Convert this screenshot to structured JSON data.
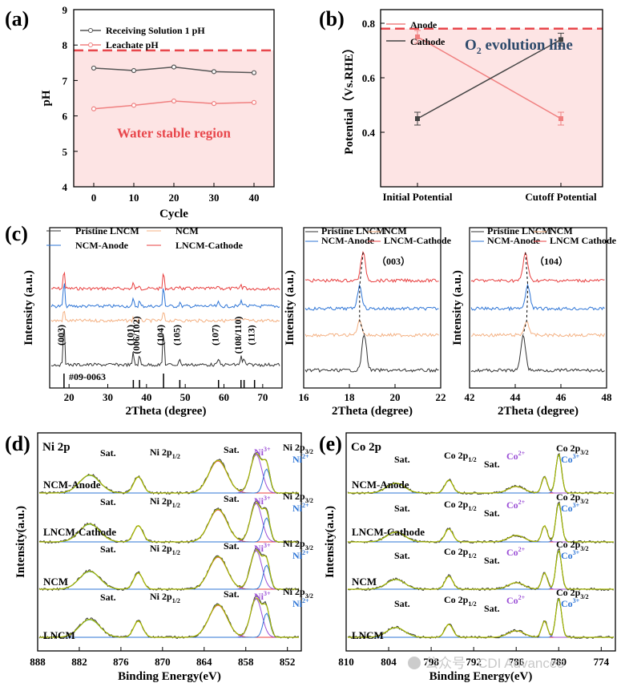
{
  "chart_data": [
    {
      "id": "a",
      "panel_label": "(a)",
      "type": "line",
      "xlabel": "Cycle",
      "ylabel": "pH",
      "x": [
        0,
        10,
        20,
        30,
        40
      ],
      "x_ticks": [
        0,
        10,
        20,
        30,
        40
      ],
      "y_ticks": [
        4,
        5,
        6,
        7,
        8,
        9
      ],
      "xlim": [
        -5,
        45
      ],
      "ylim": [
        4,
        9
      ],
      "series": [
        {
          "name": "Receiving Solution 1 pH",
          "color": "#555555",
          "values": [
            7.35,
            7.28,
            7.38,
            7.25,
            7.22
          ]
        },
        {
          "name": "Leachate pH",
          "color": "#f08080",
          "values": [
            6.2,
            6.3,
            6.42,
            6.35,
            6.38
          ]
        }
      ],
      "threshold": 7.85,
      "region_label": "Water stable region",
      "region_color": "#fde4e4",
      "accent": "#e8474c"
    },
    {
      "id": "b",
      "panel_label": "(b)",
      "type": "line",
      "ylabel": "Potential（Vs.RHE）",
      "categories": [
        "Initial Potential",
        "Cutoff Potential"
      ],
      "y_ticks": [
        0.4,
        0.6,
        0.8
      ],
      "ylim": [
        0.2,
        0.85
      ],
      "series": [
        {
          "name": "Anode",
          "color": "#f08080",
          "values": [
            0.75,
            0.45
          ]
        },
        {
          "name": "Cathode",
          "color": "#444444",
          "values": [
            0.45,
            0.74
          ]
        }
      ],
      "threshold": 0.78,
      "threshold_label_main": "O",
      "threshold_label_sub": "2",
      "threshold_label_rest": " evolution line",
      "region_color": "#fde4e4",
      "accent": "#e8474c"
    },
    {
      "id": "c1",
      "panel_label": "(c)",
      "type": "line",
      "xlabel": "2Theta (degree)",
      "ylabel": "Intensity (a.u.)",
      "x_ticks": [
        20,
        30,
        40,
        50,
        60,
        70
      ],
      "xlim": [
        15,
        75
      ],
      "legend": [
        "Pristine LNCM",
        "NCM",
        "NCM-Anode",
        "LNCM-Cathode"
      ],
      "legend_colors": [
        "#333333",
        "#f4b183",
        "#2e75d6",
        "#e84040"
      ],
      "peaks": [
        {
          "label": "(003)",
          "pos": 18.7
        },
        {
          "label": "(101)",
          "pos": 36.6
        },
        {
          "label": "(006/102)",
          "pos": 38.2
        },
        {
          "label": "(104)",
          "pos": 44.4
        },
        {
          "label": "(105)",
          "pos": 48.6
        },
        {
          "label": "(107)",
          "pos": 58.6
        },
        {
          "label": "(108/110)",
          "pos": 64.4
        },
        {
          "label": "(113)",
          "pos": 67.9
        }
      ],
      "reference": "#09-0063",
      "reference_lines": [
        18.7,
        36.6,
        38.2,
        44.4,
        48.6,
        58.6,
        64.4,
        65.2,
        67.9
      ]
    },
    {
      "id": "c2",
      "type": "line",
      "xlabel": "2Theta (degree)",
      "ylabel": "Intensity (a.u.)",
      "x_ticks": [
        16,
        18,
        20,
        22
      ],
      "xlim": [
        16,
        22
      ],
      "legend": [
        "Pristine LNCM",
        "NCM",
        "NCM-Anode",
        "LNCM-Cathode"
      ],
      "peak_label": "（003）",
      "peak_positions": [
        18.65,
        18.45,
        18.45,
        18.6
      ]
    },
    {
      "id": "c3",
      "type": "line",
      "xlabel": "2Theta (degree)",
      "x_ticks": [
        42,
        44,
        46,
        48
      ],
      "xlim": [
        42,
        48
      ],
      "legend": [
        "Pristine LNCM",
        "NCM",
        "NCM-Anode",
        "LNCM Cathode"
      ],
      "peak_label": "（104）",
      "peak_positions": [
        44.35,
        44.5,
        44.55,
        44.45
      ]
    },
    {
      "id": "d",
      "panel_label": "(d)",
      "type": "line",
      "title": "Ni 2p",
      "xlabel": "Binding Energy(eV)",
      "ylabel": "Intensity(a.u.)",
      "x_ticks": [
        888,
        882,
        876,
        870,
        864,
        858,
        852
      ],
      "xlim": [
        888,
        850
      ],
      "samples": [
        "NCM-Anode",
        "LNCM-Cathode",
        "NCM",
        "LNCM"
      ],
      "labels": {
        "sat": "Sat.",
        "p12": "Ni 2p",
        "p12_sub": "1/2",
        "p32": "Ni 2p",
        "p32_sub": "3/2",
        "ni3": "Ni",
        "ni3_sup": "3+",
        "ni2": "Ni",
        "ni2_sup": "2+"
      }
    },
    {
      "id": "e",
      "panel_label": "(e)",
      "type": "line",
      "title": "Co 2p",
      "xlabel": "Binding Energy(eV)",
      "x_ticks": [
        810,
        804,
        798,
        792,
        786,
        780,
        774
      ],
      "xlim": [
        810,
        772
      ],
      "samples": [
        "NCM-Anode",
        "LNCM-Cathode",
        "NCM",
        "LNCM"
      ],
      "labels": {
        "sat": "Sat.",
        "p12": "Co 2p",
        "p12_sub": "1/2",
        "p32": "Co 2p",
        "p32_sub": "3/2",
        "co2": "Co",
        "co2_sup": "2+",
        "co3": "Co",
        "co3_sup": "3+"
      }
    }
  ],
  "watermark": "公众号 · CDI Advances"
}
